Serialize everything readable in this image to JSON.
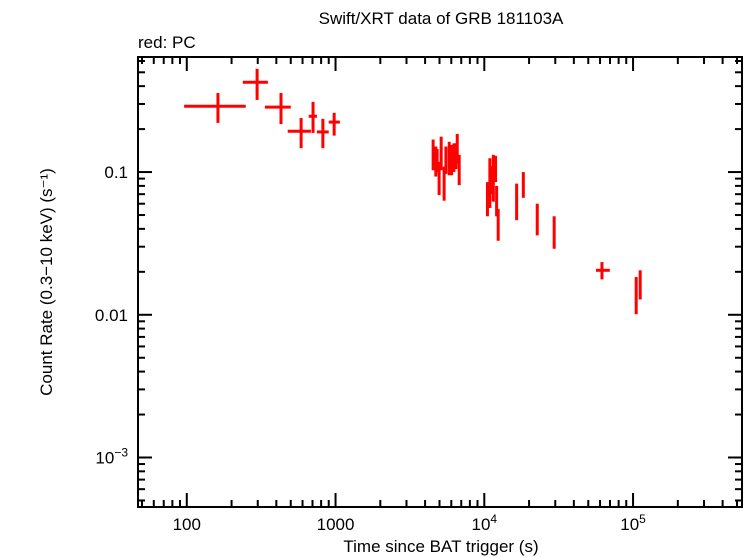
{
  "chart_data": {
    "type": "scatter",
    "title": "Swift/XRT data of GRB 181103A",
    "subtitle": "red: PC",
    "xlabel": "Time since BAT trigger (s)",
    "ylabel": "Count Rate (0.3−10 keV) (s⁻¹)",
    "xscale": "log",
    "yscale": "log",
    "xlim": [
      47,
      540000
    ],
    "ylim": [
      0.00045,
      0.64
    ],
    "grid": false,
    "x_ticks": [
      {
        "value": 100,
        "label": "100"
      },
      {
        "value": 1000,
        "label": "1000"
      },
      {
        "value": 10000,
        "label": "10",
        "exp": "4"
      },
      {
        "value": 100000,
        "label": "10",
        "exp": "5"
      }
    ],
    "y_ticks": [
      {
        "value": 0.1,
        "label": "0.1"
      },
      {
        "value": 0.01,
        "label": "0.01"
      },
      {
        "value": 0.001,
        "label": "10",
        "exp": "−3"
      }
    ],
    "series": [
      {
        "name": "PC",
        "color": "#ff0000",
        "point_format": [
          "x",
          "x_low",
          "x_high",
          "y",
          "y_low",
          "y_high"
        ],
        "points": [
          [
            162,
            96,
            249,
            0.289,
            0.221,
            0.358
          ],
          [
            297,
            238,
            351,
            0.426,
            0.32,
            0.529
          ],
          [
            430,
            335,
            500,
            0.285,
            0.217,
            0.358
          ],
          [
            587,
            477,
            683,
            0.193,
            0.147,
            0.239
          ],
          [
            706,
            660,
            750,
            0.246,
            0.188,
            0.31
          ],
          [
            822,
            750,
            900,
            0.191,
            0.147,
            0.236
          ],
          [
            979,
            900,
            1070,
            0.224,
            0.18,
            0.26
          ],
          [
            4530,
            4470,
            4590,
            0.137,
            0.103,
            0.169
          ],
          [
            4720,
            4660,
            4780,
            0.118,
            0.093,
            0.151
          ],
          [
            4820,
            4760,
            4880,
            0.123,
            0.1,
            0.145
          ],
          [
            4970,
            4910,
            5030,
            0.095,
            0.069,
            0.118
          ],
          [
            5130,
            5060,
            5200,
            0.143,
            0.103,
            0.177
          ],
          [
            5370,
            5300,
            5440,
            0.086,
            0.063,
            0.109
          ],
          [
            5520,
            5450,
            5590,
            0.121,
            0.097,
            0.151
          ],
          [
            5810,
            5740,
            5880,
            0.128,
            0.095,
            0.163
          ],
          [
            6030,
            5950,
            6110,
            0.121,
            0.095,
            0.155
          ],
          [
            6250,
            6170,
            6330,
            0.139,
            0.1,
            0.159
          ],
          [
            6450,
            6370,
            6530,
            0.135,
            0.105,
            0.159
          ],
          [
            6580,
            6500,
            6660,
            0.151,
            0.115,
            0.185
          ],
          [
            6780,
            6700,
            6860,
            0.106,
            0.081,
            0.132
          ],
          [
            10500,
            10350,
            10650,
            0.064,
            0.049,
            0.085
          ],
          [
            10900,
            10750,
            11050,
            0.079,
            0.056,
            0.125
          ],
          [
            11200,
            11050,
            11350,
            0.09,
            0.07,
            0.11
          ],
          [
            11500,
            11350,
            11650,
            0.088,
            0.062,
            0.132
          ],
          [
            11900,
            11750,
            12050,
            0.106,
            0.085,
            0.13
          ],
          [
            12100,
            11950,
            12250,
            0.064,
            0.049,
            0.08
          ],
          [
            12400,
            12200,
            12600,
            0.0436,
            0.033,
            0.055
          ],
          [
            16500,
            16200,
            16800,
            0.06,
            0.046,
            0.083
          ],
          [
            18300,
            18000,
            18600,
            0.083,
            0.066,
            0.1
          ],
          [
            22700,
            22300,
            23100,
            0.048,
            0.036,
            0.06
          ],
          [
            29500,
            29000,
            30000,
            0.039,
            0.029,
            0.049
          ],
          [
            61800,
            56300,
            69800,
            0.0205,
            0.0177,
            0.0234
          ],
          [
            105000,
            103500,
            106500,
            0.0166,
            0.0101,
            0.0184
          ],
          [
            111700,
            110000,
            113400,
            0.0161,
            0.0128,
            0.0205
          ]
        ]
      }
    ]
  }
}
